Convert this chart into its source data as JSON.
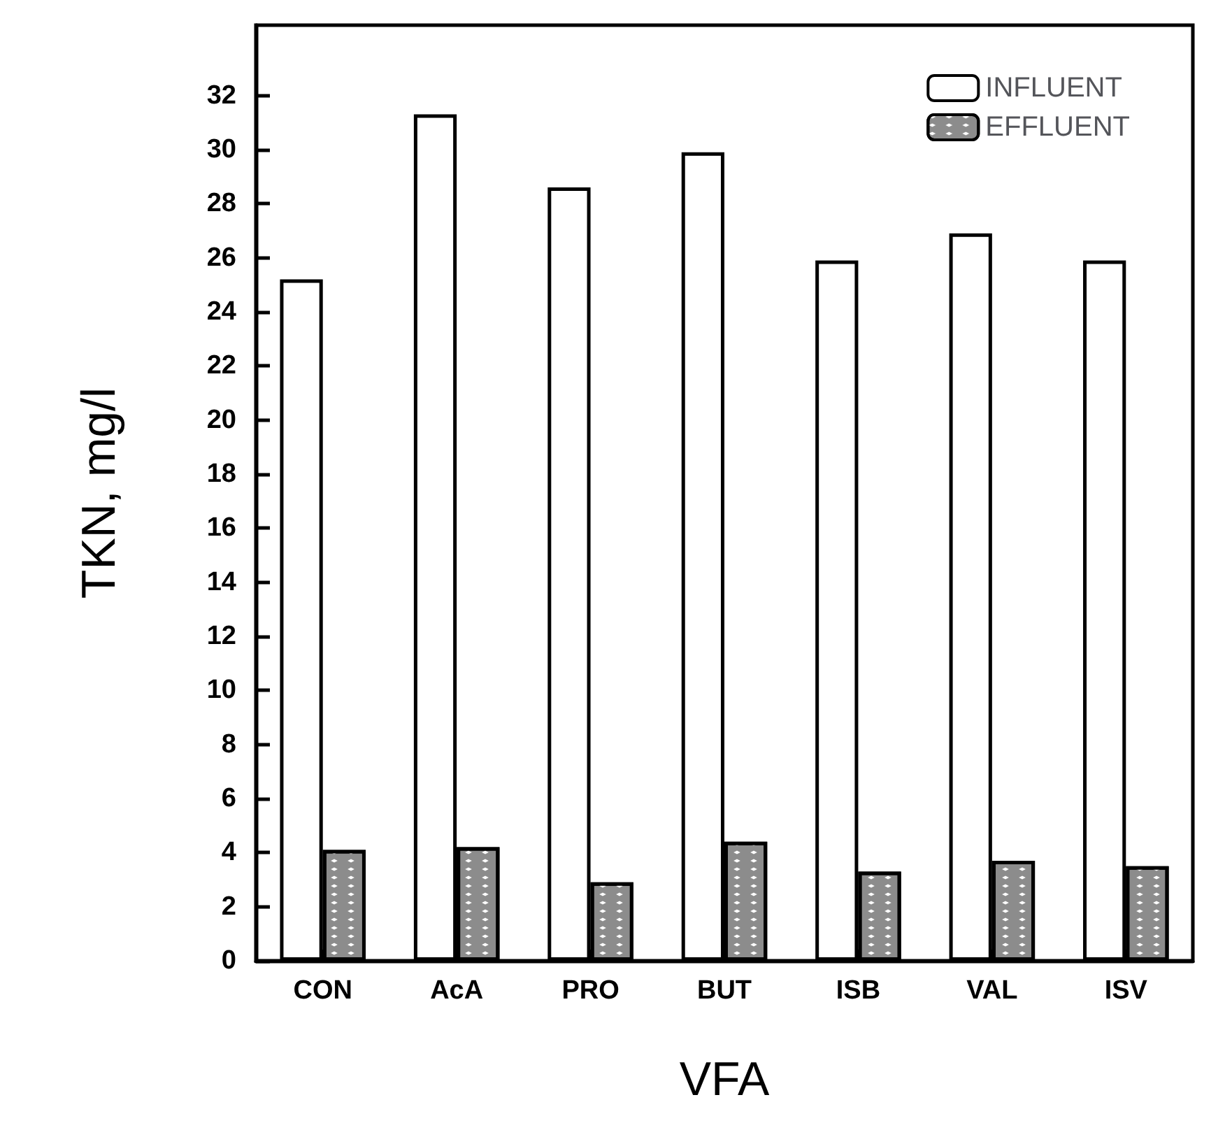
{
  "chart_data": {
    "type": "bar",
    "xlabel": "VFA",
    "ylabel": "TKN, mg/l",
    "categories": [
      "CON",
      "AcA",
      "PRO",
      "BUT",
      "ISB",
      "VAL",
      "ISV"
    ],
    "series": [
      {
        "name": "INFLUENT",
        "color": "#ffffff",
        "values": [
          25.2,
          31.3,
          28.6,
          29.9,
          25.9,
          26.9,
          25.9
        ]
      },
      {
        "name": "EFFLUENT",
        "color": "#8c8c8c",
        "values": [
          4.1,
          4.2,
          2.9,
          4.4,
          3.3,
          3.7,
          3.5
        ]
      }
    ],
    "ylim": [
      0,
      34.6
    ],
    "yticks": [
      0,
      2,
      4,
      6,
      8,
      10,
      12,
      14,
      16,
      18,
      20,
      22,
      24,
      26,
      28,
      30,
      32
    ],
    "grid": false,
    "legend": "top right"
  }
}
